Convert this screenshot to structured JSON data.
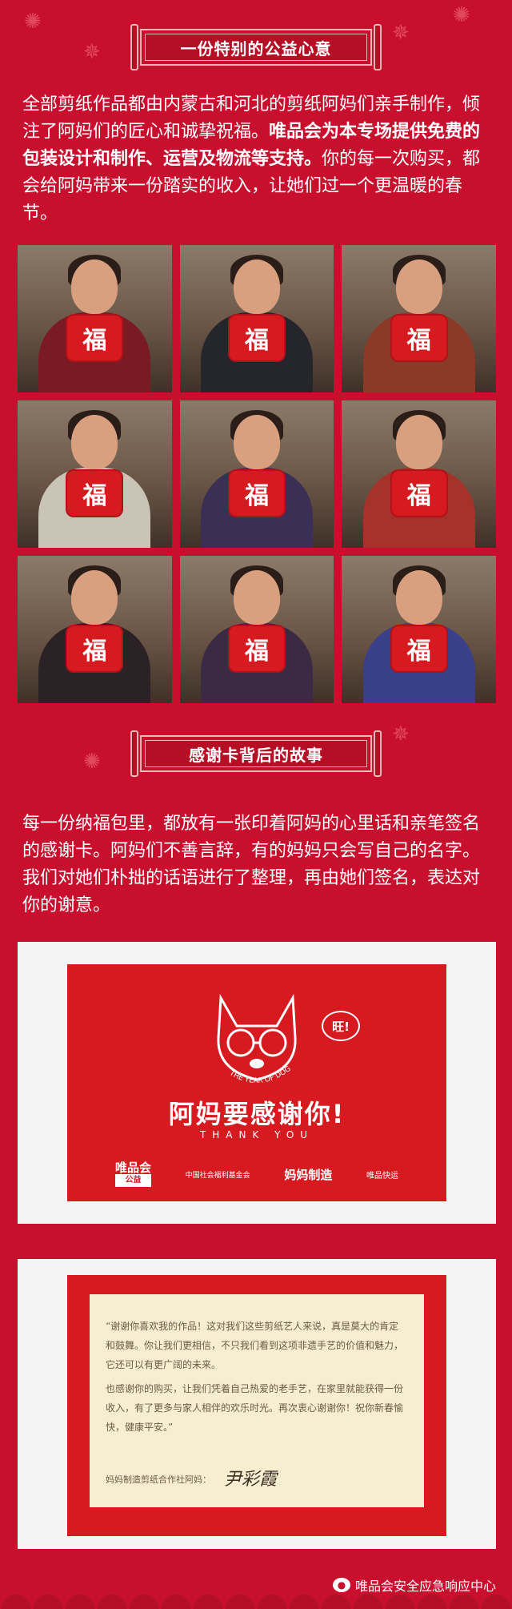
{
  "section1": {
    "banner": "一份特别的公益心意",
    "para_part1": "全部剪纸作品都由内蒙古和河北的剪纸阿妈们亲手制作，倾注了阿妈们的匠心和诚挚祝福。",
    "para_highlight": "唯品会为本专场提供免费的包装设计和制作、运营及物流等支持。",
    "para_part2": "你的每一次购买，都会给阿妈带来一份踏实的收入，让她们过一个更温暖的春节。"
  },
  "photos": [
    {
      "fu": "福",
      "clothes": "#7a1b24"
    },
    {
      "fu": "福",
      "clothes": "#24262b"
    },
    {
      "fu": "福",
      "clothes": "#8a3a26"
    },
    {
      "fu": "福",
      "clothes": "#c9c4b6"
    },
    {
      "fu": "福",
      "clothes": "#3b2f55"
    },
    {
      "fu": "福",
      "clothes": "#a5322b"
    },
    {
      "fu": "福",
      "clothes": "#2a2225"
    },
    {
      "fu": "福",
      "clothes": "#3a2a44"
    },
    {
      "fu": "福",
      "clothes": "#3a3f8a"
    }
  ],
  "section2": {
    "banner": "感谢卡背后的故事",
    "para": "每一份纳福包里，都放有一张印着阿妈的心里话和亲笔签名的感谢卡。阿妈们不善言辞，有的妈妈只会写自己的名字。我们对她们朴拙的话语进行了整理，再由她们签名，表达对你的谢意。"
  },
  "card_front": {
    "speech": "旺!",
    "year_text": "THE YEAR OF DOG",
    "title": "阿妈要感谢你!",
    "subtitle": "THANK YOU",
    "logo1_top": "唯品会",
    "logo1_bottom": "公益",
    "logo2": "中国社会福利基金会",
    "logo3": "妈妈制造",
    "logo4": "唯品快运"
  },
  "card_back": {
    "para1": "“谢谢你喜欢我的作品！这对我们这些剪纸艺人来说，真是莫大的肯定和鼓舞。你让我们更相信，不只我们看到这项非遗手艺的价值和魅力，它还可以有更广阔的未来。",
    "para2": "也感谢你的购买，让我们凭着自己热爱的老手艺，在家里就能获得一份收入，有了更多与家人相伴的欢乐时光。再次衷心谢谢你！祝你新春愉快，健康平安。”",
    "signer_label": "妈妈制造剪纸合作社阿妈：",
    "signature": "尹彩霞"
  },
  "footer": {
    "brand": "唯品会安全应急响应中心"
  },
  "colors": {
    "background": "#c8102e",
    "accent_red": "#d71920",
    "text": "#ffffff"
  }
}
